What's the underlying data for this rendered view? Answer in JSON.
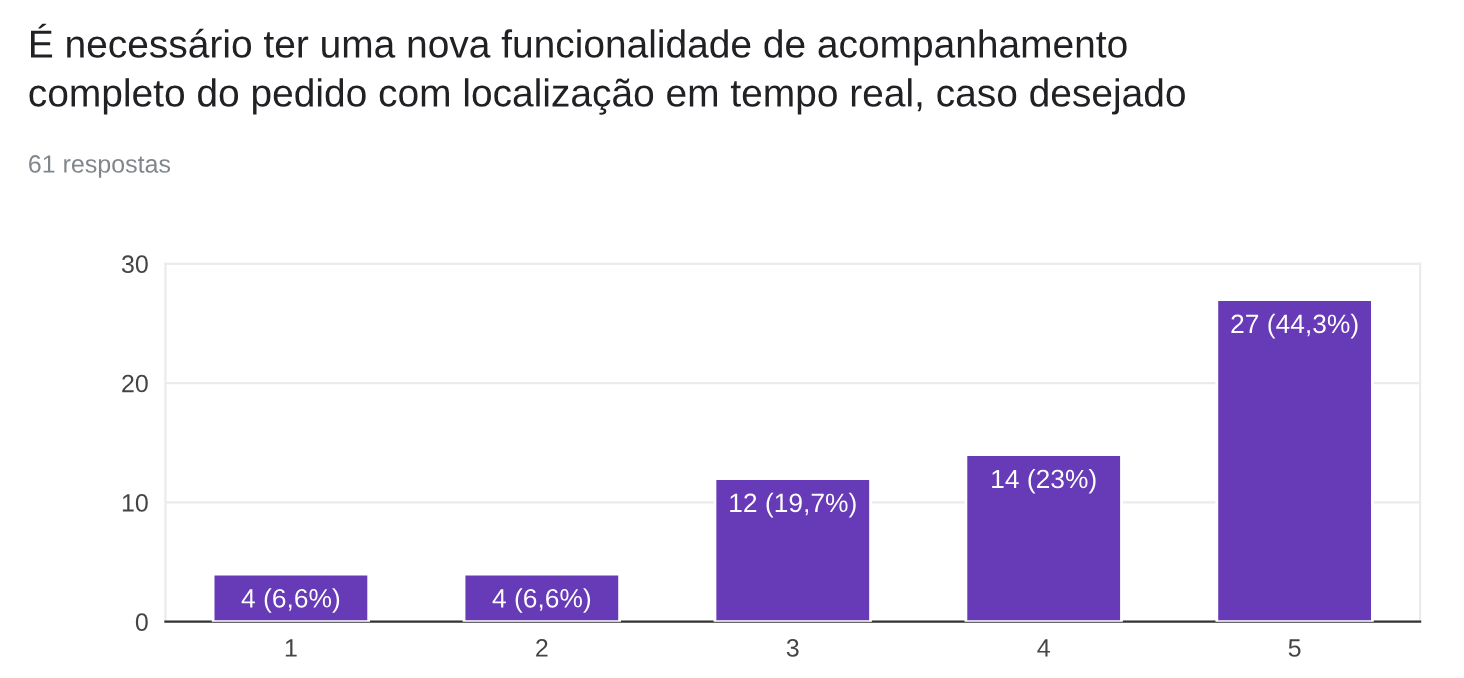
{
  "chart_data": {
    "type": "bar",
    "title": "É necessário ter uma nova funcionalidade de acompanhamento\ncompleto do pedido com localização em tempo real, caso desejado",
    "subtitle": "61 respostas",
    "categories": [
      "1",
      "2",
      "3",
      "4",
      "5"
    ],
    "values": [
      4,
      4,
      12,
      14,
      27
    ],
    "value_labels": [
      "4 (6,6%)",
      "4 (6,6%)",
      "12 (19,7%)",
      "14 (23%)",
      "27 (44,3%)"
    ],
    "color": "#673ab7",
    "ylim": [
      0,
      30
    ],
    "yticks": [
      0,
      10,
      20,
      30
    ],
    "grid": "y",
    "legend": false
  }
}
